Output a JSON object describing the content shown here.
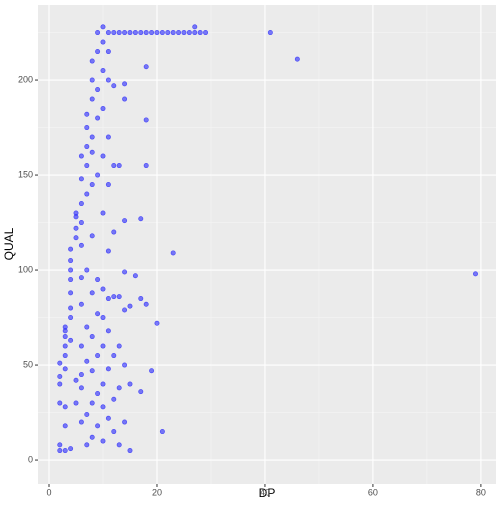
{
  "chart_data": {
    "type": "scatter",
    "x_label": "DP",
    "y_label": "QUAL",
    "color": "#0000ff",
    "xlim": [
      -2.04,
      82.8
    ],
    "ylim": [
      -12.6,
      239.5
    ],
    "xticks": [
      0,
      20,
      40,
      60,
      80
    ],
    "yticks": [
      0,
      50,
      100,
      150,
      200
    ],
    "xminor": [
      10,
      30,
      50,
      70
    ],
    "yminor": [
      25,
      75,
      125,
      175,
      225
    ],
    "grid": true,
    "x": [
      2,
      2,
      3,
      4,
      3,
      2,
      3,
      2,
      2,
      3,
      2,
      3,
      3,
      3,
      3,
      3,
      4,
      4,
      4,
      4,
      4,
      4,
      4,
      4,
      5,
      5,
      5,
      5,
      5,
      5,
      6,
      6,
      6,
      6,
      6,
      6,
      6,
      6,
      6,
      6,
      6,
      7,
      7,
      7,
      7,
      7,
      7,
      7,
      7,
      7,
      7,
      8,
      8,
      8,
      8,
      8,
      8,
      8,
      8,
      8,
      8,
      8,
      8,
      9,
      9,
      9,
      9,
      9,
      9,
      9,
      9,
      9,
      9,
      10,
      10,
      10,
      10,
      10,
      10,
      10,
      10,
      10,
      10,
      10,
      10,
      11,
      11,
      11,
      11,
      11,
      11,
      11,
      11,
      11,
      11,
      12,
      12,
      12,
      12,
      12,
      12,
      12,
      12,
      13,
      13,
      13,
      13,
      13,
      13,
      14,
      14,
      14,
      14,
      14,
      14,
      14,
      14,
      15,
      15,
      15,
      15,
      16,
      16,
      17,
      17,
      17,
      17,
      18,
      18,
      18,
      18,
      18,
      19,
      19,
      20,
      20,
      21,
      21,
      22,
      23,
      23,
      24,
      25,
      26,
      27,
      27,
      28,
      29,
      41,
      46,
      79
    ],
    "values": [
      5,
      8,
      5,
      6,
      18,
      30,
      28,
      40,
      44,
      48,
      51,
      55,
      60,
      65,
      68,
      70,
      63,
      75,
      80,
      88,
      95,
      100,
      105,
      111,
      42,
      30,
      117,
      122,
      128,
      130,
      20,
      38,
      45,
      60,
      82,
      96,
      113,
      125,
      135,
      148,
      160,
      8,
      24,
      52,
      70,
      100,
      140,
      155,
      165,
      175,
      182,
      12,
      30,
      47,
      65,
      88,
      118,
      145,
      162,
      170,
      190,
      200,
      210,
      18,
      35,
      55,
      77,
      95,
      150,
      180,
      195,
      215,
      225,
      10,
      28,
      40,
      60,
      75,
      90,
      130,
      160,
      185,
      205,
      220,
      228,
      22,
      48,
      68,
      85,
      110,
      145,
      170,
      200,
      215,
      225,
      15,
      32,
      55,
      86,
      120,
      155,
      197,
      225,
      8,
      38,
      60,
      86,
      155,
      225,
      20,
      50,
      79,
      99,
      126,
      190,
      198,
      225,
      5,
      40,
      81,
      225,
      97,
      225,
      36,
      127,
      85,
      225,
      82,
      155,
      179,
      207,
      225,
      47,
      225,
      72,
      225,
      15,
      225,
      225,
      109,
      225,
      225,
      225,
      225,
      225,
      228,
      225,
      225,
      225,
      211,
      98
    ]
  }
}
